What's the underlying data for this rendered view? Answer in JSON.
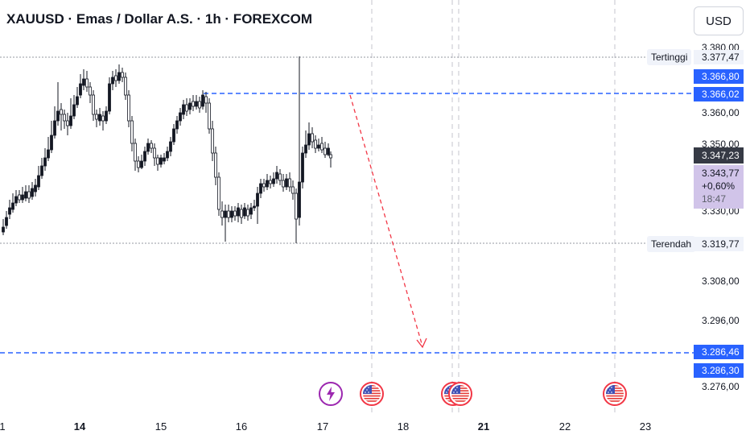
{
  "header": {
    "title": "XAUUSD · Emas / Dollar A.S. · 1h · FOREXCOM"
  },
  "currency_button": "USD",
  "price_axis": {
    "ticks": [
      "3.380,00",
      "3.360,00",
      "3.350,00",
      "3.330,00",
      "3.308,00",
      "3.296,00",
      "3.276,00"
    ],
    "high": {
      "label": "Tertinggi",
      "value": "3.377,47"
    },
    "low": {
      "label": "Terendah",
      "value": "3.319,77"
    },
    "line_top_a": "3.366,80",
    "line_top_b": "3.366,02",
    "line_bottom_a": "3.286,46",
    "line_bottom_b": "3.286,30",
    "current_price": "3.347,23",
    "quote": {
      "price": "3.343,77",
      "change": "+0,60%",
      "countdown": "18:47"
    }
  },
  "time_axis": {
    "labels": [
      "1",
      "14",
      "15",
      "16",
      "17",
      "18",
      "21",
      "22",
      "23"
    ],
    "bold": [
      "14",
      "21"
    ]
  },
  "events": [
    "flash-event-icon",
    "us-flag-icon",
    "us-flag-icon",
    "us-flag-icon",
    "us-flag-icon"
  ],
  "colors": {
    "up": "#131722",
    "down": "#131722",
    "blue_line": "#2962ff",
    "arrow": "#f23645",
    "current_tag": "#363a45",
    "quote_bg": "#d1c4e9",
    "flash": "#9c27b0"
  },
  "chart_data": {
    "type": "candlestick",
    "instrument": "XAUUSD",
    "interval": "1h",
    "high": 3377.47,
    "low": 3319.77,
    "last": 3343.77,
    "levels": [
      3366.8,
      3366.02,
      3286.46,
      3286.3
    ],
    "projection": {
      "from": 3366.02,
      "to": 3286.46
    }
  }
}
